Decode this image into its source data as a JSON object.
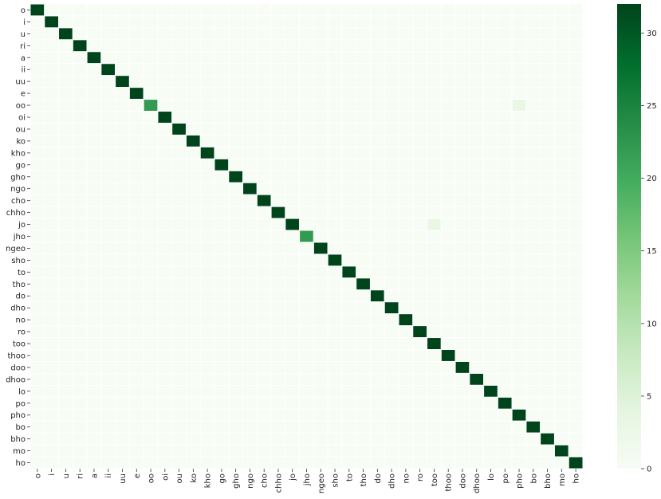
{
  "chart_data": {
    "type": "heatmap",
    "title": "",
    "xlabel": "",
    "ylabel": "",
    "labels": [
      "o",
      "i",
      "u",
      "ri",
      "a",
      "ii",
      "uu",
      "e",
      "oo",
      "oi",
      "ou",
      "ko",
      "kho",
      "go",
      "gho",
      "ngo",
      "cho",
      "chho",
      "jo",
      "jho",
      "ngeo",
      "sho",
      "to",
      "tho",
      "do",
      "dho",
      "no",
      "ro",
      "too",
      "thoo",
      "doo",
      "dhoo",
      "lo",
      "po",
      "pho",
      "bo",
      "bho",
      "mo",
      "ho"
    ],
    "diagonal": [
      32,
      32,
      32,
      32,
      32,
      32,
      32,
      32,
      22,
      32,
      32,
      32,
      32,
      32,
      32,
      32,
      32,
      32,
      32,
      22,
      32,
      32,
      32,
      32,
      32,
      32,
      32,
      32,
      32,
      32,
      32,
      32,
      32,
      32,
      32,
      32,
      32,
      32,
      32
    ],
    "off_diagonal": [
      {
        "row": "oo",
        "col": "pho",
        "value": 3
      },
      {
        "row": "jo",
        "col": "too",
        "value": 3
      }
    ],
    "vmin": 0,
    "vmax": 32,
    "colorbar_ticks": [
      0,
      5,
      10,
      15,
      20,
      25,
      30
    ],
    "colormap": [
      "#f7fcf5",
      "#e5f5e0",
      "#c7e9c0",
      "#a1d99b",
      "#74c476",
      "#41ab5d",
      "#238b45",
      "#006d2c",
      "#00441b"
    ],
    "cell_border_color": "#ffffff",
    "grid": false
  }
}
